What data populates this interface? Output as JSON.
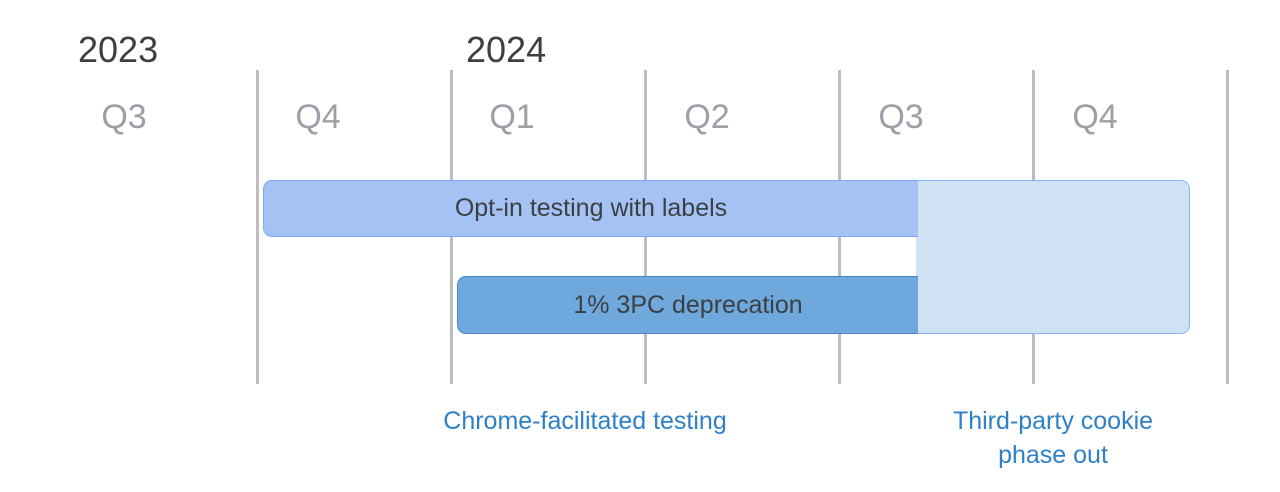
{
  "years": [
    "2023",
    "2024"
  ],
  "quarters": [
    "Q3",
    "Q4",
    "Q1",
    "Q2",
    "Q3",
    "Q4"
  ],
  "bars": {
    "optin": "Opt-in testing with labels",
    "deprecation": "1% 3PC deprecation"
  },
  "phases": {
    "testing": "Chrome-facilitated testing",
    "phaseout_line1": "Third-party cookie",
    "phaseout_line2": "phase out"
  },
  "colors": {
    "optin_bar": "#a4c2f4",
    "deprecation_bar": "#6fa8dc",
    "phaseout_region": "#cfe2f3",
    "phase_label": "#2e80c9",
    "quarter_text": "#9aa0a6",
    "year_text": "#3c4043"
  }
}
